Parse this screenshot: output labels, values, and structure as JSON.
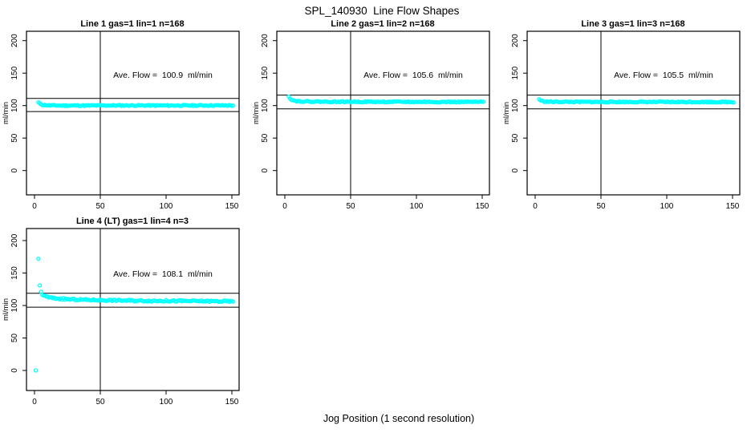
{
  "title": "SPL_140930  Line Flow Shapes",
  "xlabel": "Jog Position (1 second resolution)",
  "colors": {
    "points": "#00FFFF",
    "lines": "#000000",
    "background": "#FFFFFF"
  },
  "chart_data": [
    {
      "type": "scatter",
      "title": "Line 1 gas=1 lin=1 n=168",
      "annotation": "Ave. Flow =  100.9  ml/min",
      "ave_flow_ml_min": 100.9,
      "n": 168,
      "ylabel": "ml/min",
      "xticks": [
        0,
        50,
        100,
        150
      ],
      "yticks": [
        0,
        50,
        100,
        150,
        200
      ],
      "xlim": [
        -6,
        156
      ],
      "ylim": [
        -37,
        215
      ],
      "vline_x": 50,
      "hlines": [
        111.0,
        90.8
      ],
      "marker": "open-circle",
      "grid": false,
      "seed": 11,
      "jitter": 0.8,
      "x_start": 3,
      "x_end": 151,
      "trend": [
        [
          3,
          104.8
        ],
        [
          4,
          103.2
        ],
        [
          5,
          102.2
        ],
        [
          6,
          101.4
        ],
        [
          8,
          100.8
        ],
        [
          12,
          100.3
        ],
        [
          20,
          100.1
        ],
        [
          60,
          100.3
        ],
        [
          100,
          100.2
        ],
        [
          151,
          100.3
        ]
      ],
      "extra_points": []
    },
    {
      "type": "scatter",
      "title": "Line 2 gas=1 lin=2 n=168",
      "annotation": "Ave. Flow =  105.6  ml/min",
      "ave_flow_ml_min": 105.6,
      "n": 168,
      "ylabel": "ml/min",
      "xticks": [
        0,
        50,
        100,
        150
      ],
      "yticks": [
        0,
        50,
        100,
        150,
        200
      ],
      "xlim": [
        -6,
        156
      ],
      "ylim": [
        -37,
        215
      ],
      "vline_x": 50,
      "hlines": [
        116.2,
        95.0
      ],
      "marker": "open-circle",
      "grid": false,
      "seed": 22,
      "jitter": 0.8,
      "x_start": 3,
      "x_end": 151,
      "trend": [
        [
          3,
          114.5
        ],
        [
          4,
          111.5
        ],
        [
          5,
          109.5
        ],
        [
          6,
          108.3
        ],
        [
          8,
          107.3
        ],
        [
          12,
          106.6
        ],
        [
          20,
          106.2
        ],
        [
          40,
          105.9
        ],
        [
          151,
          105.6
        ]
      ],
      "extra_points": []
    },
    {
      "type": "scatter",
      "title": "Line 3 gas=1 lin=3 n=168",
      "annotation": "Ave. Flow =  105.5  ml/min",
      "ave_flow_ml_min": 105.5,
      "n": 168,
      "ylabel": "ml/min",
      "xticks": [
        0,
        50,
        100,
        150
      ],
      "yticks": [
        0,
        50,
        100,
        150,
        200
      ],
      "xlim": [
        -6,
        156
      ],
      "ylim": [
        -37,
        215
      ],
      "vline_x": 50,
      "hlines": [
        116.1,
        95.0
      ],
      "marker": "open-circle",
      "grid": false,
      "seed": 33,
      "jitter": 0.8,
      "x_start": 3,
      "x_end": 151,
      "trend": [
        [
          3,
          110.0
        ],
        [
          4,
          108.3
        ],
        [
          5,
          107.3
        ],
        [
          7,
          106.3
        ],
        [
          12,
          105.9
        ],
        [
          30,
          105.7
        ],
        [
          151,
          105.5
        ]
      ],
      "extra_points": []
    },
    {
      "type": "scatter",
      "title": "Line 4 (LT) gas=1 lin=4 n=3",
      "annotation": "Ave. Flow =  108.1  ml/min",
      "ave_flow_ml_min": 108.1,
      "n": 3,
      "ylabel": "ml/min",
      "xticks": [
        0,
        50,
        100,
        150
      ],
      "yticks": [
        0,
        50,
        100,
        150,
        200
      ],
      "xlim": [
        -6,
        156
      ],
      "ylim": [
        -31,
        218
      ],
      "vline_x": 50,
      "hlines": [
        118.9,
        97.3
      ],
      "marker": "open-circle",
      "grid": false,
      "seed": 44,
      "jitter": 1.2,
      "x_start": 3,
      "x_end": 151,
      "trend": [
        [
          3,
          171
        ],
        [
          4,
          131
        ],
        [
          5,
          121
        ],
        [
          6,
          117
        ],
        [
          7,
          115.5
        ],
        [
          9,
          113.5
        ],
        [
          12,
          112
        ],
        [
          16,
          111
        ],
        [
          22,
          110
        ],
        [
          30,
          109.3
        ],
        [
          45,
          108.5
        ],
        [
          60,
          108
        ],
        [
          80,
          107.4
        ],
        [
          110,
          107
        ],
        [
          151,
          106.3
        ]
      ],
      "extra_points": [
        [
          1,
          0
        ]
      ]
    }
  ]
}
